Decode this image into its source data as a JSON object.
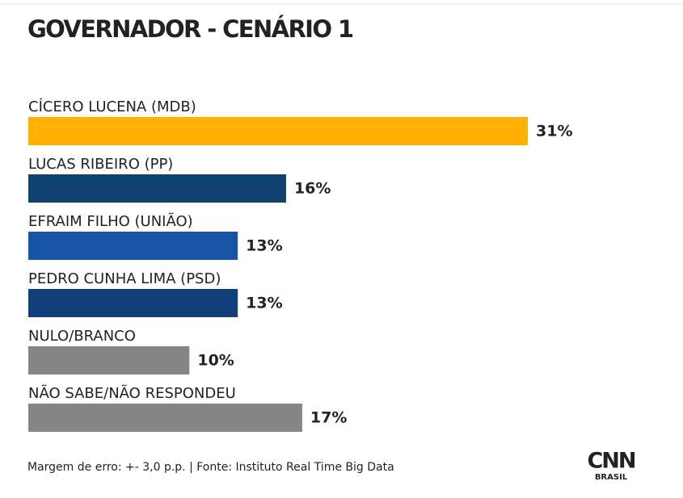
{
  "chart_data": {
    "type": "bar",
    "orientation": "horizontal",
    "title": "GOVERNADOR - CENÁRIO 1",
    "categories": [
      "CÍCERO LUCENA (MDB)",
      "LUCAS RIBEIRO (PP)",
      "EFRAIM FILHO (UNIÃO)",
      "PEDRO CUNHA LIMA (PSD)",
      "NULO/BRANCO",
      "NÃO SABE/NÃO RESPONDEU"
    ],
    "values": [
      31,
      16,
      13,
      13,
      10,
      17
    ],
    "value_labels": [
      "31%",
      "16%",
      "13%",
      "13%",
      "10%",
      "17%"
    ],
    "colors": [
      "#ffb000",
      "#0f426f",
      "#1754a6",
      "#113f7a",
      "#868686",
      "#868686"
    ],
    "note": "Margem de erro: +- 3,0 p.p. | Fonte: Instituto Real Time Big Data",
    "logo": {
      "name": "CNN",
      "sub": "BRASIL"
    }
  }
}
